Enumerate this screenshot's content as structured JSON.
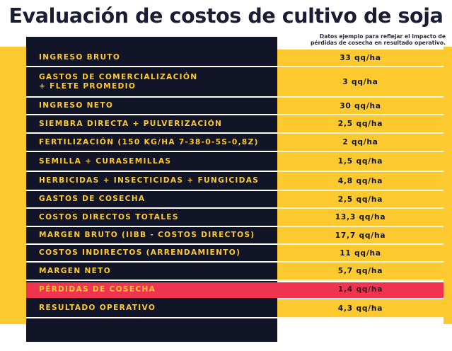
{
  "title": "Evaluación de costos de cultivo de soja",
  "note": {
    "line1": "Datos ejemplo para reflejar el impacto de",
    "line2": "pérdidas de cosecha en resultado operativo."
  },
  "colors": {
    "dark": "#121528",
    "yellow": "#fcc92f",
    "highlight": "#f0334e"
  },
  "rows": [
    {
      "label": "INGRESO BRUTO",
      "value": "33 qq/ha"
    },
    {
      "label": "GASTOS DE COMERCIALIZACIÓN",
      "label2": "+ FLETE PROMEDIO",
      "value": "3 qq/ha"
    },
    {
      "label": "INGRESO NETO",
      "value": "30 qq/ha"
    },
    {
      "label": "SIEMBRA DIRECTA + PULVERIZACIÓN",
      "value": "2,5 qq/ha"
    },
    {
      "label": "FERTILIZACIÓN (150 KG/HA 7-38-0-5S-0,8Z)",
      "value": "2 qq/ha"
    },
    {
      "label": "SEMILLA + CURASEMILLAS",
      "value": "1,5 qq/ha"
    },
    {
      "label": "HERBICIDAS + INSECTICIDAS + FUNGICIDAS",
      "value": "4,8 qq/ha"
    },
    {
      "label": "GASTOS DE COSECHA",
      "value": "2,5 qq/ha"
    },
    {
      "label": "COSTOS DIRECTOS TOTALES",
      "value": "13,3 qq/ha"
    },
    {
      "label": "MARGEN BRUTO (IIBB - COSTOS DIRECTOS)",
      "value": "17,7 qq/ha"
    },
    {
      "label": "COSTOS INDIRECTOS (ARRENDAMIENTO)",
      "value": "11 qq/ha"
    },
    {
      "label": "MARGEN NETO",
      "value": "5,7 qq/ha"
    },
    {
      "label": "PÉRDIDAS DE COSECHA",
      "value": "1,4 qq/ha",
      "highlight": true
    },
    {
      "label": "RESULTADO OPERATIVO",
      "value": "4,3 qq/ha"
    }
  ]
}
